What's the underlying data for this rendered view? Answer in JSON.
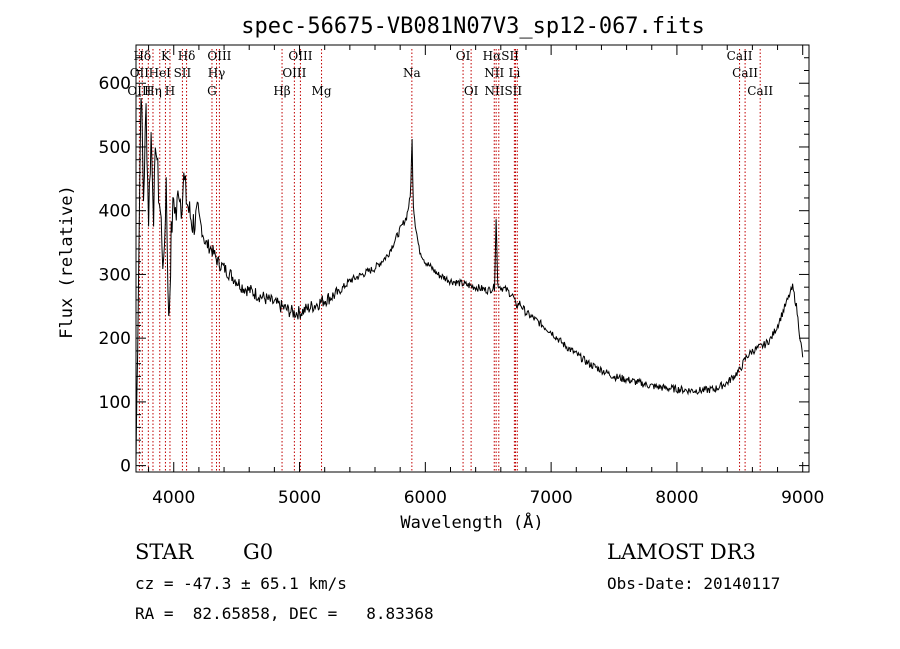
{
  "chart_data": {
    "type": "line",
    "title": "spec-56675-VB081N07V3_sp12-067.fits",
    "xlabel": "Wavelength (Å)",
    "ylabel": "Flux (relative)",
    "xlim": [
      3700,
      9050
    ],
    "ylim": [
      -10,
      660
    ],
    "x_ticks": [
      4000,
      5000,
      6000,
      7000,
      8000,
      9000
    ],
    "y_ticks": [
      0,
      100,
      200,
      300,
      400,
      500,
      600
    ],
    "grid": false,
    "series": [
      {
        "name": "spectrum",
        "x": [
          3700,
          3720,
          3740,
          3760,
          3780,
          3800,
          3820,
          3840,
          3860,
          3880,
          3900,
          3920,
          3940,
          3960,
          3970,
          3980,
          4000,
          4020,
          4040,
          4060,
          4080,
          4100,
          4120,
          4150,
          4200,
          4250,
          4300,
          4350,
          4400,
          4450,
          4500,
          4550,
          4600,
          4650,
          4700,
          4750,
          4800,
          4850,
          4900,
          4950,
          5000,
          5050,
          5100,
          5150,
          5200,
          5300,
          5400,
          5500,
          5600,
          5700,
          5800,
          5850,
          5880,
          5895,
          5905,
          5920,
          5950,
          6000,
          6100,
          6200,
          6300,
          6400,
          6500,
          6550,
          6563,
          6575,
          6600,
          6650,
          6700,
          6720,
          6750,
          6800,
          6900,
          7000,
          7100,
          7200,
          7300,
          7400,
          7500,
          7600,
          7700,
          7800,
          7900,
          8000,
          8100,
          8200,
          8300,
          8400,
          8500,
          8550,
          8600,
          8650,
          8700,
          8750,
          8800,
          8850,
          8900,
          8920,
          8950,
          8980,
          9000
        ],
        "y": [
          5,
          300,
          600,
          420,
          560,
          390,
          520,
          400,
          510,
          430,
          380,
          300,
          450,
          220,
          280,
          360,
          420,
          390,
          440,
          410,
          450,
          420,
          400,
          380,
          390,
          350,
          340,
          320,
          310,
          300,
          290,
          280,
          275,
          270,
          265,
          260,
          255,
          250,
          245,
          240,
          240,
          245,
          250,
          255,
          260,
          270,
          290,
          300,
          310,
          330,
          370,
          390,
          420,
          510,
          410,
          380,
          340,
          320,
          300,
          290,
          285,
          280,
          275,
          280,
          390,
          285,
          280,
          275,
          265,
          250,
          255,
          240,
          225,
          210,
          190,
          175,
          160,
          150,
          140,
          135,
          130,
          125,
          122,
          120,
          118,
          118,
          120,
          130,
          150,
          170,
          180,
          185,
          190,
          200,
          220,
          245,
          270,
          280,
          250,
          200,
          170
        ]
      }
    ],
    "spectral_lines": [
      {
        "label": "Hδ",
        "x": 3750,
        "row": 0
      },
      {
        "label": "K",
        "x": 3934,
        "row": 0
      },
      {
        "label": "Hδ",
        "x": 4102,
        "row": 0
      },
      {
        "label": "OIII",
        "x": 4363,
        "row": 0
      },
      {
        "label": "OIII",
        "x": 5007,
        "row": 0
      },
      {
        "label": "OI",
        "x": 6300,
        "row": 0
      },
      {
        "label": "HαSII",
        "x": 6600,
        "row": 0
      },
      {
        "label": "CaII",
        "x": 8498,
        "row": 0
      },
      {
        "label": "OII",
        "x": 3727,
        "row": 1
      },
      {
        "label": "HeI",
        "x": 3889,
        "row": 1
      },
      {
        "label": "SII",
        "x": 4069,
        "row": 1
      },
      {
        "label": "Hγ",
        "x": 4340,
        "row": 1
      },
      {
        "label": "OIII",
        "x": 4959,
        "row": 1
      },
      {
        "label": "Na",
        "x": 5893,
        "row": 1
      },
      {
        "label": "NII",
        "x": 6548,
        "row": 1
      },
      {
        "label": "Li",
        "x": 6708,
        "row": 1
      },
      {
        "label": "CaII",
        "x": 8542,
        "row": 1
      },
      {
        "label": "OIII",
        "x": 3727,
        "row": 2
      },
      {
        "label": "Hη",
        "x": 3835,
        "row": 2
      },
      {
        "label": "H",
        "x": 3970,
        "row": 2
      },
      {
        "label": "G",
        "x": 4304,
        "row": 2
      },
      {
        "label": "Hβ",
        "x": 4861,
        "row": 2
      },
      {
        "label": "Mg",
        "x": 5175,
        "row": 2
      },
      {
        "label": "OI",
        "x": 6364,
        "row": 2
      },
      {
        "label": "NIISII",
        "x": 6620,
        "row": 2
      },
      {
        "label": "CaII",
        "x": 8662,
        "row": 2
      }
    ],
    "line_markers_x": [
      3727,
      3750,
      3798,
      3835,
      3889,
      3934,
      3970,
      4069,
      4102,
      4304,
      4340,
      4363,
      4861,
      4959,
      5007,
      5175,
      5893,
      6300,
      6364,
      6548,
      6563,
      6584,
      6708,
      6717,
      6731,
      8498,
      8542,
      8662
    ]
  },
  "info": {
    "object_class": "STAR",
    "subclass": "G0",
    "survey": "LAMOST DR3",
    "cz": "cz = -47.3 ± 65.1 km/s",
    "obs_date": "Obs-Date: 20140117",
    "coords": "RA =  82.65858, DEC =   8.83368"
  },
  "colors": {
    "line": "#000000",
    "marker": "#c00000",
    "axes": "#000000"
  }
}
